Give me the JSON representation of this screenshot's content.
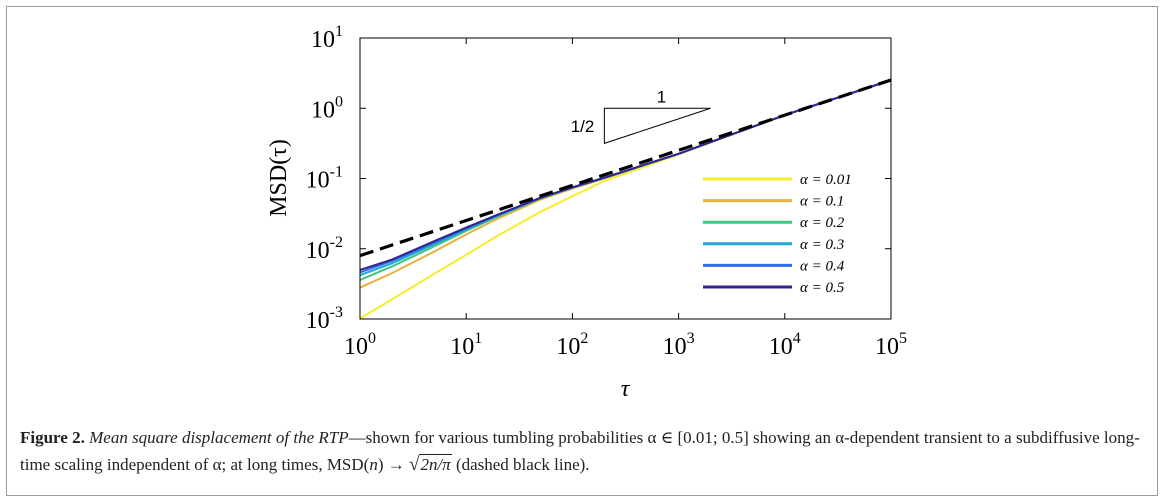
{
  "chart_data": {
    "type": "line",
    "xlabel": "τ",
    "ylabel": "MSD(τ)",
    "xscale": "log",
    "yscale": "log",
    "xlim": [
      1,
      100000
    ],
    "ylim": [
      0.001,
      10
    ],
    "x_ticks": [
      {
        "value": 1,
        "base": "10",
        "exp": "0"
      },
      {
        "value": 10,
        "base": "10",
        "exp": "1"
      },
      {
        "value": 100,
        "base": "10",
        "exp": "2"
      },
      {
        "value": 1000,
        "base": "10",
        "exp": "3"
      },
      {
        "value": 10000,
        "base": "10",
        "exp": "4"
      },
      {
        "value": 100000,
        "base": "10",
        "exp": "5"
      }
    ],
    "y_ticks": [
      {
        "value": 0.001,
        "base": "10",
        "exp": "-3"
      },
      {
        "value": 0.01,
        "base": "10",
        "exp": "-2"
      },
      {
        "value": 0.1,
        "base": "10",
        "exp": "-1"
      },
      {
        "value": 1,
        "base": "10",
        "exp": "0"
      },
      {
        "value": 10,
        "base": "10",
        "exp": "1"
      }
    ],
    "legend_position": "right",
    "series": [
      {
        "name": "α = 0.01",
        "color": "#f5ee2a",
        "x": [
          1,
          2,
          5,
          10,
          20,
          50,
          100,
          200,
          1000,
          10000,
          100000
        ],
        "y": [
          0.00102,
          0.0019,
          0.0044,
          0.0082,
          0.0155,
          0.0335,
          0.056,
          0.092,
          0.22,
          0.798,
          2.52
        ]
      },
      {
        "name": "α = 0.1",
        "color": "#e8b13e",
        "x": [
          1,
          2,
          5,
          10,
          20,
          50,
          100,
          200,
          1000,
          10000,
          100000
        ],
        "y": [
          0.0028,
          0.0045,
          0.0091,
          0.016,
          0.027,
          0.05,
          0.072,
          0.1,
          0.225,
          0.798,
          2.52
        ]
      },
      {
        "name": "α = 0.2",
        "color": "#3ec483",
        "x": [
          1,
          2,
          5,
          10,
          20,
          50,
          100,
          200,
          1000,
          10000,
          100000
        ],
        "y": [
          0.0036,
          0.0056,
          0.0108,
          0.018,
          0.029,
          0.052,
          0.074,
          0.102,
          0.225,
          0.798,
          2.52
        ]
      },
      {
        "name": "α = 0.3",
        "color": "#1fa8d8",
        "x": [
          1,
          2,
          5,
          10,
          20,
          50,
          100,
          200,
          1000,
          10000,
          100000
        ],
        "y": [
          0.0042,
          0.0062,
          0.0116,
          0.0188,
          0.0298,
          0.0528,
          0.0745,
          0.1025,
          0.225,
          0.798,
          2.52
        ]
      },
      {
        "name": "α = 0.4",
        "color": "#2f6fe8",
        "x": [
          1,
          2,
          5,
          10,
          20,
          50,
          100,
          200,
          1000,
          10000,
          100000
        ],
        "y": [
          0.0046,
          0.0067,
          0.0122,
          0.0194,
          0.0302,
          0.053,
          0.0748,
          0.1027,
          0.225,
          0.798,
          2.52
        ]
      },
      {
        "name": "α = 0.5",
        "color": "#33258f",
        "x": [
          1,
          2,
          5,
          10,
          20,
          50,
          100,
          200,
          1000,
          10000,
          100000
        ],
        "y": [
          0.005,
          0.007,
          0.0128,
          0.02,
          0.0308,
          0.0532,
          0.075,
          0.1028,
          0.225,
          0.798,
          2.52
        ]
      }
    ],
    "reference_line": {
      "color": "#000000",
      "x": [
        1,
        100000
      ],
      "y": [
        0.00798,
        2.5231
      ]
    },
    "slope_triangle": {
      "labels": [
        "1",
        "1/2"
      ],
      "x": [
        200,
        2000
      ],
      "y": [
        0.316,
        1.0
      ]
    }
  },
  "caption": {
    "label": "Figure 2.",
    "title": "Mean square displacement of the RTP",
    "text_a": "—shown for various tumbling probabilities α ∈ [0.01; 0.5] showing an α-dependent transient to a subdiffusive long-time scaling independent of α; at long times, MSD(",
    "n": "n",
    "text_b": ") → ",
    "sqrt_body": "2n/π",
    "text_c": " (dashed black line)."
  }
}
